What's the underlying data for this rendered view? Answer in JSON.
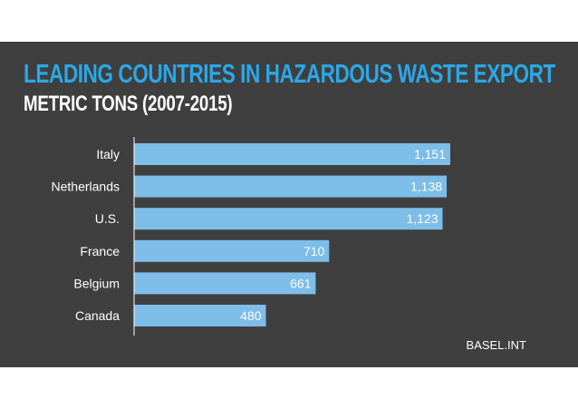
{
  "colors": {
    "background": "#3f3f3f",
    "title": "#2aa8e8",
    "subtitle": "#ffffff",
    "bar": "#7dbde8",
    "bar_label": "#ffffff",
    "category_label": "#ffffff",
    "axis": "#ffffff"
  },
  "source": "BASEL.INT",
  "chart_data": {
    "type": "bar",
    "orientation": "horizontal",
    "title": "Leading Countries in Hazardous Waste Export",
    "subtitle": "Metric Tons (2007-2015)",
    "categories": [
      "Italy",
      "Netherlands",
      "U.S.",
      "France",
      "Belgium",
      "Canada"
    ],
    "values": [
      1151,
      1138,
      1123,
      710,
      661,
      480
    ],
    "value_labels": [
      "1,151",
      "1,138",
      "1,123",
      "710",
      "661",
      "480"
    ],
    "xlim": [
      0,
      1151
    ],
    "grid": false,
    "legend": "none"
  }
}
